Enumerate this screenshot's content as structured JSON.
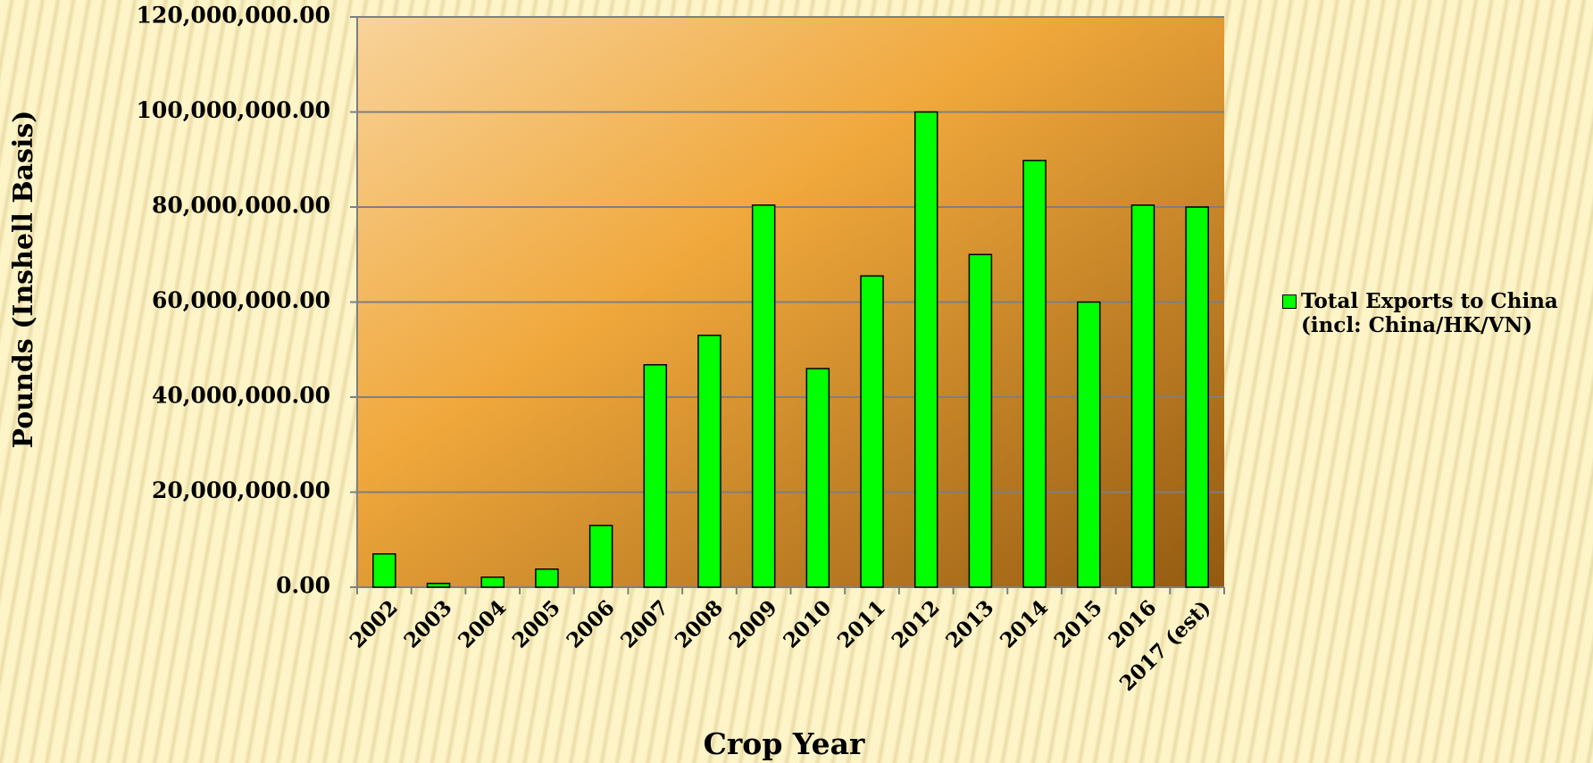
{
  "chart_data": {
    "type": "bar",
    "y_label": "Pounds (Inshell Basis)",
    "x_label": "Crop Year",
    "categories": [
      "2002",
      "2003",
      "2004",
      "2005",
      "2006",
      "2007",
      "2008",
      "2009",
      "2010",
      "2011",
      "2012",
      "2013",
      "2014",
      "2015",
      "2016",
      "2017 (est)"
    ],
    "series": [
      {
        "name": "Total Exports to China\n(incl: China/HK/VN)",
        "color": "#00ff00",
        "values": [
          7000000,
          800000,
          2100000,
          3800000,
          13000000,
          46800000,
          53000000,
          80400000,
          46000000,
          65500000,
          100000000,
          70000000,
          89800000,
          60000000,
          80400000,
          80000000
        ]
      }
    ],
    "ylim": [
      0,
      120000000
    ],
    "yticks": [
      {
        "value": 0,
        "label": "0.00"
      },
      {
        "value": 20000000,
        "label": "20,000,000.00"
      },
      {
        "value": 40000000,
        "label": "40,000,000.00"
      },
      {
        "value": 60000000,
        "label": "60,000,000.00"
      },
      {
        "value": 80000000,
        "label": "80,000,000.00"
      },
      {
        "value": 100000000,
        "label": "100,000,000.00"
      },
      {
        "value": 120000000,
        "label": "120,000,000.00"
      }
    ],
    "grid": true,
    "legend": "right"
  }
}
